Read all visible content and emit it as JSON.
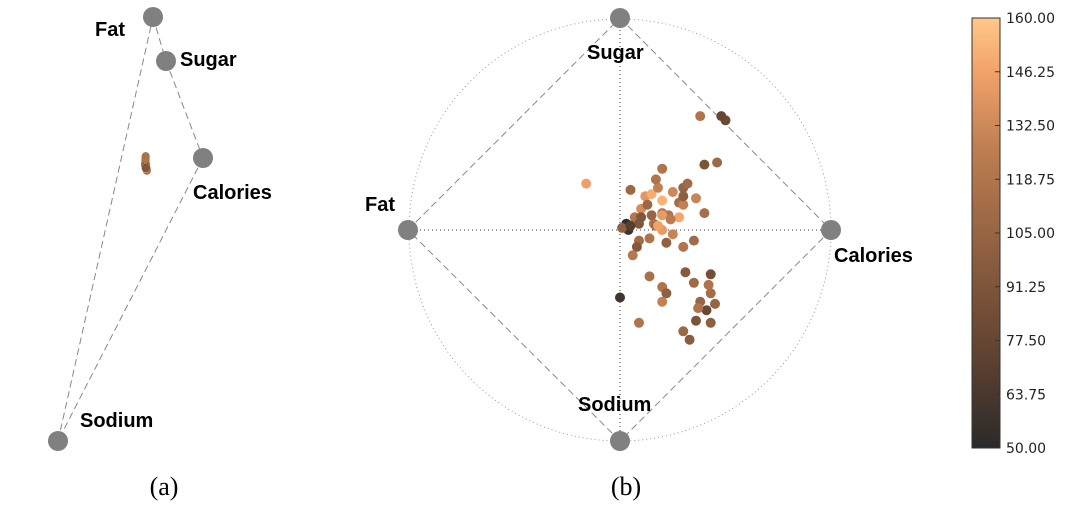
{
  "chart_data": [
    {
      "type": "scatter",
      "panel_label": "(a)",
      "anchors": [
        "Fat",
        "Sugar",
        "Calories",
        "Sodium"
      ],
      "points": [
        [
          0.69,
          0.8,
          0.76,
          0.72,
          140
        ],
        [
          0.69,
          0.8,
          0.75,
          0.73,
          115
        ],
        [
          0.7,
          0.81,
          0.74,
          0.73,
          112
        ],
        [
          0.7,
          0.79,
          0.74,
          0.72,
          136
        ],
        [
          0.7,
          0.79,
          0.73,
          0.71,
          150
        ],
        [
          0.69,
          0.79,
          0.73,
          0.72,
          120
        ],
        [
          0.69,
          0.78,
          0.72,
          0.7,
          98
        ],
        [
          0.7,
          0.78,
          0.71,
          0.7,
          148
        ],
        [
          0.7,
          0.77,
          0.71,
          0.7,
          130
        ],
        [
          0.7,
          0.76,
          0.7,
          0.69,
          158
        ],
        [
          0.7,
          0.76,
          0.7,
          0.68,
          58
        ],
        [
          0.7,
          0.76,
          0.69,
          0.69,
          140
        ],
        [
          0.7,
          0.75,
          0.69,
          0.69,
          100
        ],
        [
          0.7,
          0.75,
          0.68,
          0.68,
          120
        ],
        [
          0.7,
          0.74,
          0.68,
          0.67,
          152
        ],
        [
          0.7,
          0.74,
          0.67,
          0.68,
          110
        ],
        [
          0.7,
          0.73,
          0.67,
          0.67,
          135
        ],
        [
          0.7,
          0.73,
          0.66,
          0.66,
          120
        ],
        [
          0.69,
          0.72,
          0.66,
          0.67,
          147
        ],
        [
          0.69,
          0.72,
          0.65,
          0.66,
          112
        ],
        [
          0.69,
          0.71,
          0.65,
          0.65,
          125
        ],
        [
          0.69,
          0.7,
          0.64,
          0.65,
          60
        ],
        [
          0.69,
          0.7,
          0.63,
          0.64,
          130
        ],
        [
          0.69,
          0.69,
          0.63,
          0.64,
          118
        ],
        [
          0.68,
          0.68,
          0.62,
          0.63,
          105
        ],
        [
          0.68,
          0.67,
          0.61,
          0.62,
          140
        ],
        [
          0.68,
          0.66,
          0.6,
          0.62,
          115
        ],
        [
          0.67,
          0.65,
          0.6,
          0.61,
          88
        ],
        [
          0.67,
          0.64,
          0.59,
          0.6,
          128
        ],
        [
          0.67,
          0.63,
          0.58,
          0.59,
          110
        ],
        [
          0.66,
          0.62,
          0.57,
          0.58,
          95
        ],
        [
          0.66,
          0.61,
          0.56,
          0.57,
          135
        ],
        [
          0.66,
          0.6,
          0.55,
          0.56,
          115
        ],
        [
          0.65,
          0.59,
          0.54,
          0.55,
          70
        ],
        [
          0.65,
          0.58,
          0.53,
          0.54,
          120
        ],
        [
          0.65,
          0.57,
          0.52,
          0.53,
          105
        ],
        [
          0.64,
          0.56,
          0.51,
          0.52,
          130
        ],
        [
          0.64,
          0.55,
          0.5,
          0.51,
          82
        ],
        [
          0.63,
          0.54,
          0.49,
          0.5,
          118
        ],
        [
          0.63,
          0.53,
          0.48,
          0.49,
          100
        ],
        [
          0.62,
          0.52,
          0.47,
          0.48,
          125
        ],
        [
          0.62,
          0.51,
          0.46,
          0.47,
          115
        ],
        [
          0.71,
          0.86,
          0.84,
          0.77,
          112
        ],
        [
          0.71,
          0.87,
          0.85,
          0.78,
          95
        ],
        [
          0.71,
          0.88,
          0.87,
          0.79,
          138
        ],
        [
          0.7,
          0.89,
          0.88,
          0.8,
          102
        ],
        [
          0.7,
          0.84,
          0.8,
          0.76,
          150
        ],
        [
          0.7,
          0.83,
          0.79,
          0.75,
          130
        ],
        [
          0.7,
          0.82,
          0.77,
          0.74,
          92
        ]
      ]
    },
    {
      "type": "scatter",
      "panel_label": "(b)",
      "anchors": [
        "Sugar",
        "Calories",
        "Sodium",
        "Fat"
      ],
      "xlim": [
        -1,
        1
      ],
      "ylim": [
        -1,
        1
      ],
      "points": [
        [
          -0.16,
          0.22,
          145
        ],
        [
          0.07,
          0.06,
          120
        ],
        [
          0.1,
          0.1,
          135
        ],
        [
          0.2,
          0.08,
          118
        ],
        [
          0.28,
          0.13,
          112
        ],
        [
          0.12,
          0.16,
          140
        ],
        [
          0.15,
          0.17,
          150
        ],
        [
          0.18,
          0.2,
          128
        ],
        [
          0.05,
          0.19,
          108
        ],
        [
          0.17,
          0.24,
          118
        ],
        [
          0.3,
          0.2,
          104
        ],
        [
          0.4,
          0.31,
          90
        ],
        [
          0.46,
          0.32,
          108
        ],
        [
          0.2,
          0.29,
          118
        ],
        [
          0.38,
          0.54,
          118
        ],
        [
          0.5,
          0.52,
          80
        ],
        [
          0.48,
          0.54,
          78
        ],
        [
          0.36,
          0.15,
          130
        ],
        [
          0.3,
          0.12,
          128
        ],
        [
          0.28,
          0.06,
          148
        ],
        [
          0.2,
          0.14,
          152
        ],
        [
          0.13,
          0.12,
          108
        ],
        [
          0.03,
          0.03,
          55
        ],
        [
          0.04,
          0.0,
          60
        ],
        [
          0.09,
          -0.05,
          112
        ],
        [
          0.16,
          0.03,
          120
        ],
        [
          0.23,
          0.07,
          118
        ],
        [
          0.2,
          0.0,
          142
        ],
        [
          0.25,
          -0.02,
          130
        ],
        [
          0.3,
          -0.08,
          118
        ],
        [
          0.35,
          -0.05,
          110
        ],
        [
          0.08,
          -0.08,
          95
        ],
        [
          0.06,
          -0.12,
          122
        ],
        [
          0.14,
          -0.22,
          115
        ],
        [
          0.2,
          -0.27,
          118
        ],
        [
          0.22,
          -0.3,
          100
        ],
        [
          0.35,
          -0.25,
          110
        ],
        [
          0.43,
          -0.21,
          85
        ],
        [
          0.38,
          -0.34,
          105
        ],
        [
          0.41,
          -0.38,
          80
        ],
        [
          0.43,
          -0.44,
          100
        ],
        [
          0.36,
          -0.43,
          90
        ],
        [
          0.3,
          -0.48,
          108
        ],
        [
          0.33,
          -0.52,
          98
        ],
        [
          0.37,
          -0.37,
          118
        ],
        [
          0.2,
          -0.34,
          128
        ],
        [
          0.09,
          -0.44,
          118
        ],
        [
          0.0,
          -0.32,
          60
        ],
        [
          0.09,
          0.03,
          92
        ],
        [
          0.17,
          0.02,
          108
        ],
        [
          0.2,
          0.07,
          142
        ],
        [
          0.01,
          0.01,
          100
        ],
        [
          0.32,
          0.22,
          110
        ],
        [
          0.4,
          0.08,
          114
        ],
        [
          0.25,
          0.18,
          132
        ],
        [
          0.18,
          0.02,
          146
        ],
        [
          0.14,
          -0.04,
          118
        ],
        [
          0.45,
          -0.35,
          105
        ],
        [
          0.43,
          -0.3,
          112
        ],
        [
          0.31,
          -0.2,
          96
        ],
        [
          0.15,
          0.07,
          106
        ],
        [
          0.05,
          0.02,
          70
        ],
        [
          0.24,
          0.05,
          124
        ],
        [
          0.1,
          0.06,
          92
        ],
        [
          0.3,
          0.16,
          100
        ],
        [
          0.42,
          -0.26,
          118
        ],
        [
          0.22,
          -0.06,
          102
        ]
      ]
    }
  ],
  "colorbar": {
    "tick_labels": [
      "160.00",
      "146.25",
      "132.50",
      "118.75",
      "105.00",
      "91.25",
      "77.50",
      "63.75",
      "50.00"
    ],
    "range": [
      50,
      160
    ],
    "colors": [
      "#2a2a2a",
      "#5c4030",
      "#8d5e40",
      "#bf7f52",
      "#f3a36a",
      "#ffc88a"
    ]
  }
}
